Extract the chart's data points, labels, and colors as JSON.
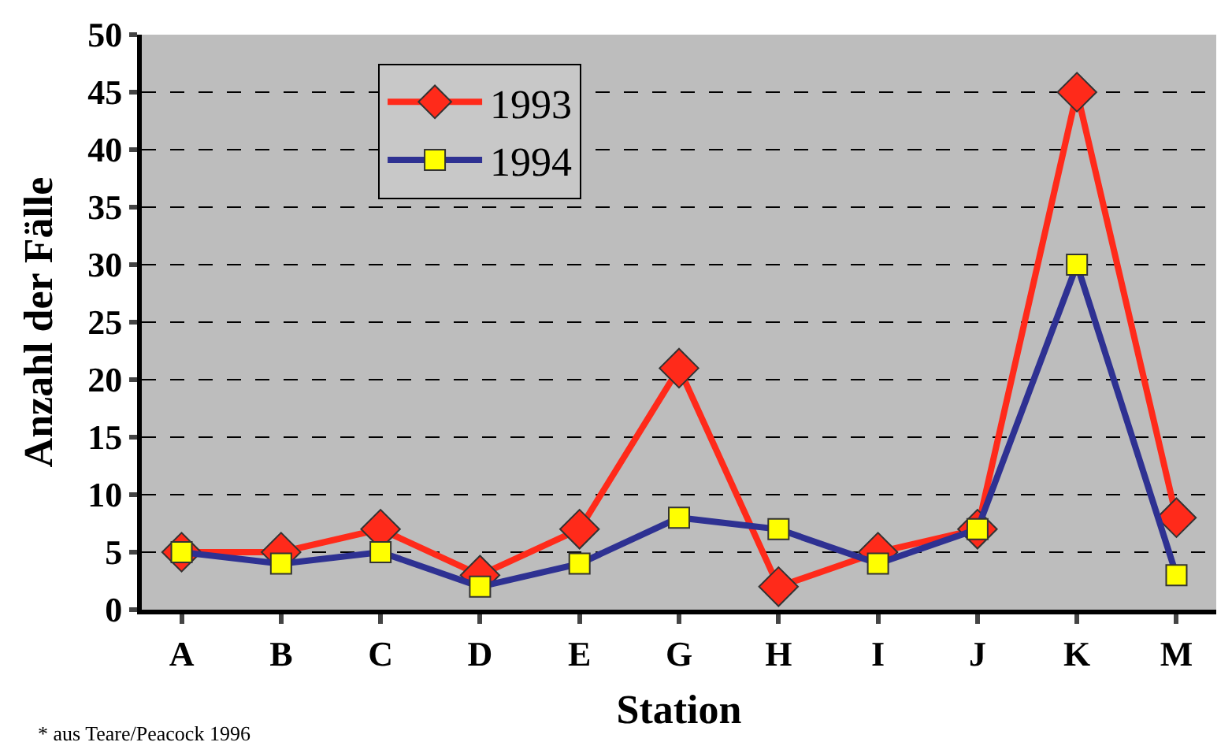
{
  "chart_data": {
    "type": "line",
    "xlabel": "Station",
    "ylabel": "Anzahl der Fälle",
    "categories": [
      "A",
      "B",
      "C",
      "D",
      "E",
      "G",
      "H",
      "I",
      "J",
      "K",
      "M"
    ],
    "series": [
      {
        "name": "1993",
        "color": "#ff2a1a",
        "marker": "diamond",
        "values": [
          5,
          5,
          7,
          3,
          7,
          21,
          2,
          5,
          7,
          45,
          8
        ]
      },
      {
        "name": "1994",
        "color": "#2e3192",
        "marker": "square",
        "colors": [
          "#ffff00",
          "#ffff00",
          "#ffff00",
          "#ffff00",
          "#ffff00",
          "#ffff00",
          "#ffff00",
          "#ffff00",
          "#ffff00",
          "#ffff00",
          "#ffff00"
        ],
        "values": [
          5,
          4,
          5,
          2,
          4,
          8,
          7,
          4,
          7,
          30,
          3
        ]
      }
    ],
    "ylim": [
      0,
      50
    ],
    "yticks": [
      0,
      5,
      10,
      15,
      20,
      25,
      30,
      35,
      40,
      45,
      50
    ],
    "grid": "y",
    "legend": "top left",
    "line_style": "solid",
    "annotations": [
      "* aus Teare/Peacock 1996"
    ]
  }
}
